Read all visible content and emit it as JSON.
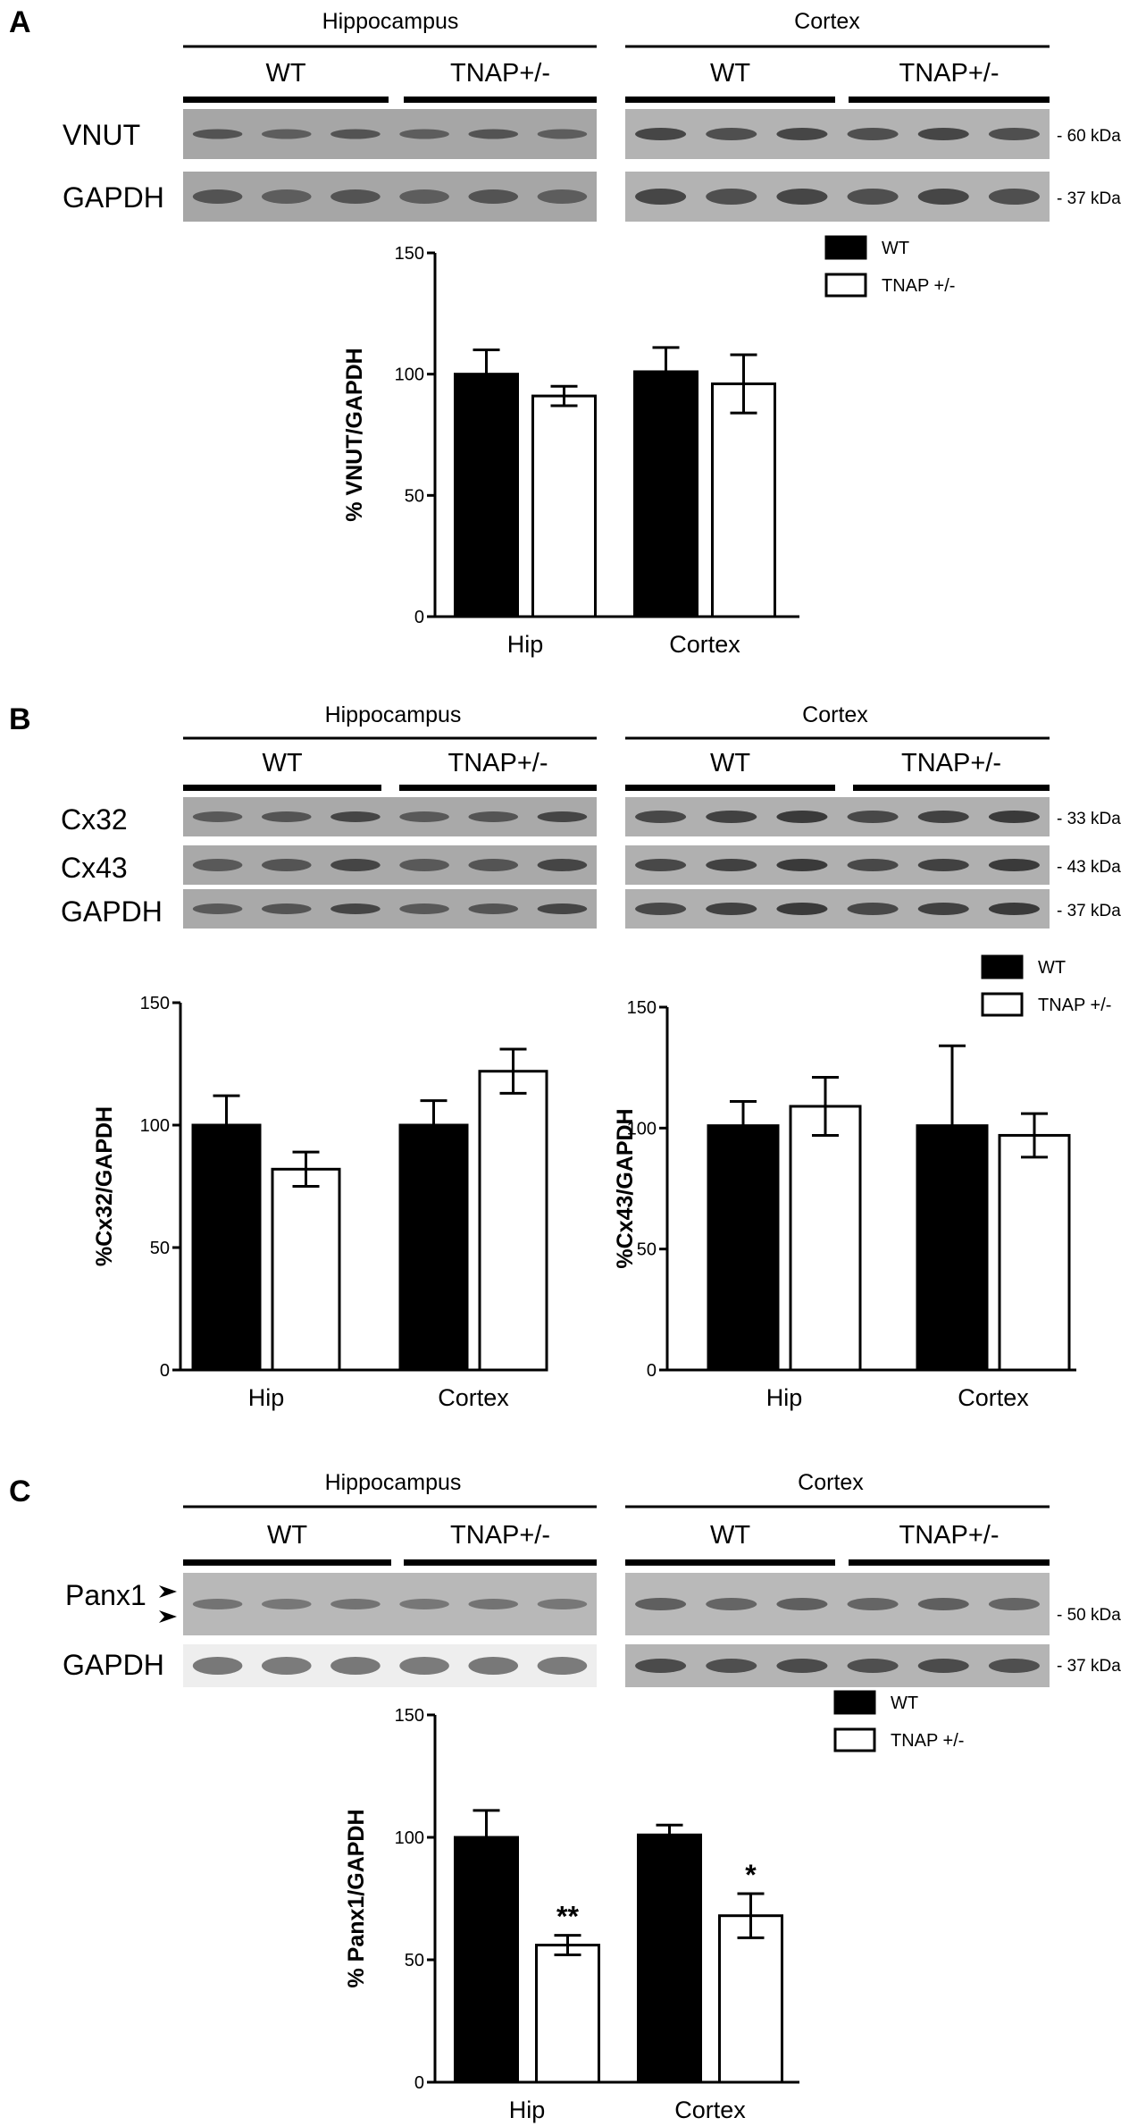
{
  "panels": [
    {
      "letter": "A",
      "blot": {
        "regions": [
          "Hippocampus",
          "Cortex"
        ],
        "groups": [
          "WT",
          "TNAP+/-",
          "WT",
          "TNAP+/-"
        ],
        "rows": [
          {
            "label": "VNUT",
            "kda": "- 60 kDa"
          },
          {
            "label": "GAPDH",
            "kda": "- 37 kDa"
          }
        ]
      }
    },
    {
      "letter": "B",
      "blot": {
        "regions": [
          "Hippocampus",
          "Cortex"
        ],
        "groups": [
          "WT",
          "TNAP+/-",
          "WT",
          "TNAP+/-"
        ],
        "rows": [
          {
            "label": "Cx32",
            "kda": "- 33 kDa"
          },
          {
            "label": "Cx43",
            "kda": "- 43 kDa"
          },
          {
            "label": "GAPDH",
            "kda": "- 37 kDa"
          }
        ]
      }
    },
    {
      "letter": "C",
      "blot": {
        "regions": [
          "Hippocampus",
          "Cortex"
        ],
        "groups": [
          "WT",
          "TNAP+/-",
          "WT",
          "TNAP+/-"
        ],
        "rows": [
          {
            "label": "Panx1",
            "kda": "- 50 kDa"
          },
          {
            "label": "GAPDH",
            "kda": "- 37 kDa"
          }
        ]
      }
    }
  ],
  "chart_data": [
    {
      "type": "bar",
      "panel": "A",
      "categories": [
        "Hip",
        "Cortex"
      ],
      "series": [
        {
          "name": "WT",
          "values": [
            100,
            101
          ],
          "errors": [
            10,
            10
          ]
        },
        {
          "name": "TNAP +/-",
          "values": [
            91,
            96
          ],
          "errors": [
            4,
            12
          ]
        }
      ],
      "ylabel": "% VNUT/GAPDH",
      "ylim": [
        0,
        150
      ],
      "yticks": [
        0,
        50,
        100,
        150
      ],
      "annotations": [
        "",
        "",
        "",
        ""
      ],
      "legend": "top-right",
      "grid": false
    },
    {
      "type": "bar",
      "panel": "B",
      "categories": [
        "Hip",
        "Cortex"
      ],
      "series": [
        {
          "name": "WT",
          "values": [
            100,
            100
          ],
          "errors": [
            12,
            10
          ]
        },
        {
          "name": "",
          "values": [
            82,
            122
          ],
          "errors": [
            7,
            9
          ]
        }
      ],
      "ylabel": "%Cx32/GAPDH",
      "ylim": [
        0,
        150
      ],
      "yticks": [
        0,
        50,
        100,
        150
      ],
      "annotations": [
        "",
        "",
        "",
        ""
      ],
      "legend": "",
      "grid": false
    },
    {
      "type": "bar",
      "panel": "B",
      "categories": [
        "Hip",
        "Cortex"
      ],
      "series": [
        {
          "name": "WT",
          "values": [
            101,
            101
          ],
          "errors": [
            10,
            33
          ]
        },
        {
          "name": "TNAP +/-",
          "values": [
            109,
            97
          ],
          "errors": [
            12,
            9
          ]
        }
      ],
      "ylabel": "%Cx43/GAPDH",
      "ylim": [
        0,
        150
      ],
      "yticks": [
        0,
        50,
        100,
        150
      ],
      "annotations": [
        "",
        "",
        "",
        ""
      ],
      "legend": "top-right",
      "grid": false
    },
    {
      "type": "bar",
      "panel": "C",
      "categories": [
        "Hip",
        "Cortex"
      ],
      "series": [
        {
          "name": "WT",
          "values": [
            100,
            101
          ],
          "errors": [
            11,
            4
          ]
        },
        {
          "name": "TNAP +/-",
          "values": [
            56,
            68
          ],
          "errors": [
            4,
            9
          ]
        }
      ],
      "ylabel": "% Panx1/GAPDH",
      "ylim": [
        0,
        150
      ],
      "yticks": [
        0,
        50,
        100,
        150
      ],
      "annotations": [
        "",
        "**",
        "",
        "*"
      ],
      "legend": "top-right",
      "grid": false
    }
  ],
  "colors": {
    "wt_bar": "#000000",
    "tnap_bar": "#ffffff",
    "axis": "#000000"
  }
}
